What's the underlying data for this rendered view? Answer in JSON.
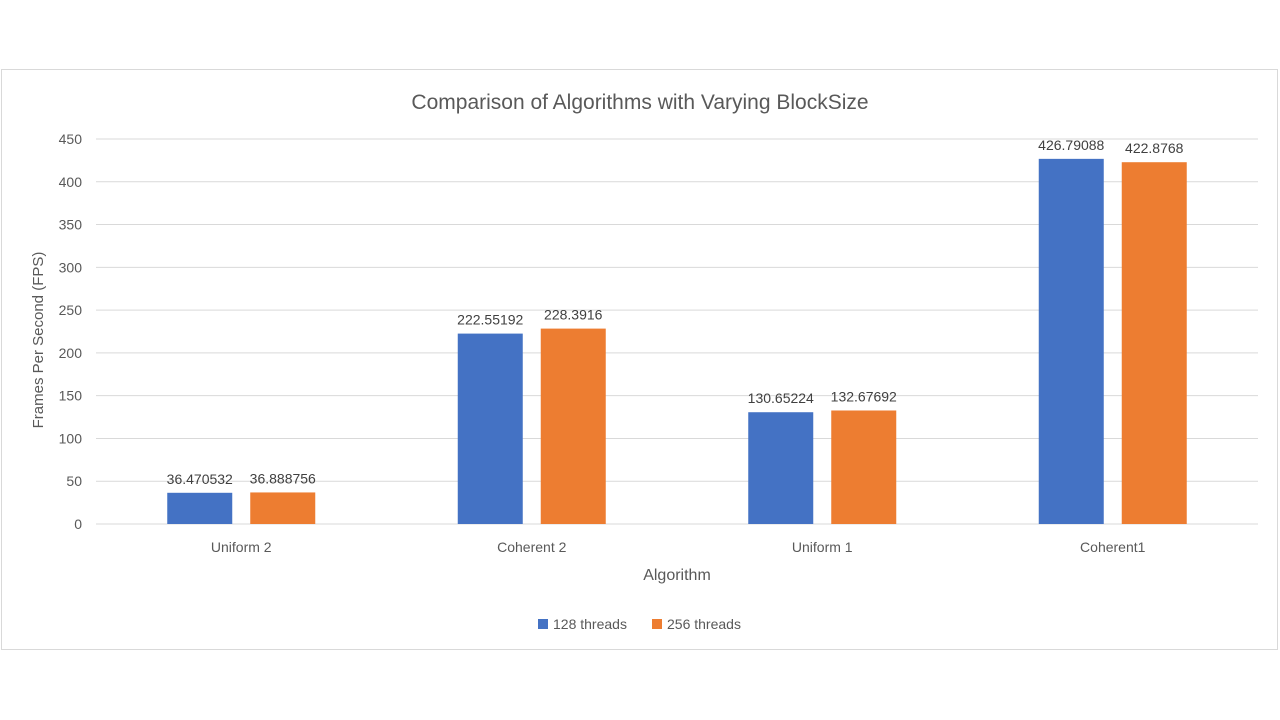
{
  "chart_data": {
    "type": "bar",
    "title": "Comparison of Algorithms with Varying BlockSize",
    "xlabel": "Algorithm",
    "ylabel": "Frames Per Second (FPS)",
    "categories": [
      "Uniform 2",
      "Coherent 2",
      "Uniform 1",
      "Coherent1"
    ],
    "series": [
      {
        "name": "128 threads",
        "color": "#4472c4",
        "values": [
          36.470532,
          222.55192,
          130.65224,
          426.79088
        ],
        "labels": [
          "36.470532",
          "222.55192",
          "130.65224",
          "426.79088"
        ]
      },
      {
        "name": "256 threads",
        "color": "#ed7d31",
        "values": [
          36.888756,
          228.3916,
          132.67692,
          422.8768
        ],
        "labels": [
          "36.888756",
          "228.3916",
          "132.67692",
          "422.8768"
        ]
      }
    ],
    "ylim": [
      0,
      450
    ],
    "yticks": [
      0,
      50,
      100,
      150,
      200,
      250,
      300,
      350,
      400,
      450
    ],
    "grid": true,
    "legend_position": "bottom"
  }
}
